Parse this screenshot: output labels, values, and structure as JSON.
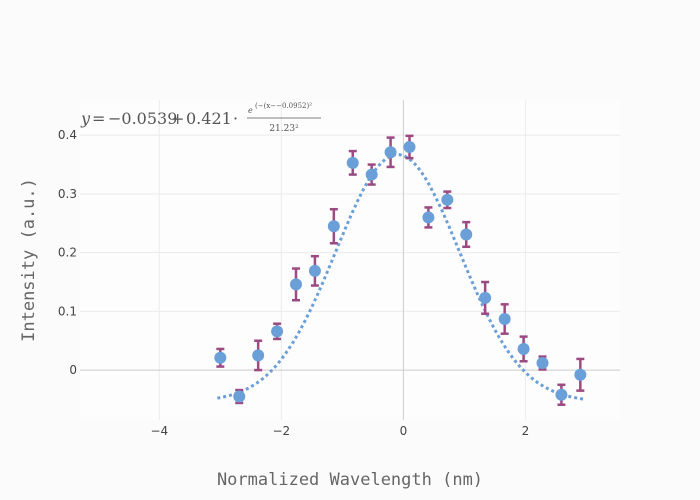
{
  "chart_data": {
    "type": "scatter",
    "xlabel": "Normalized Wavelength (nm)",
    "ylabel": "Intensity (a.u.)",
    "xlim": [
      -5.3,
      3.55
    ],
    "ylim": [
      -0.085,
      0.46
    ],
    "x_ticks": [
      -4,
      -2,
      0,
      2
    ],
    "x_tick_labels": [
      "−4",
      "−2",
      "0",
      "2"
    ],
    "y_ticks": [
      0,
      0.1,
      0.2,
      0.3,
      0.4
    ],
    "y_tick_labels": [
      "0",
      "0.1",
      "0.2",
      "0.3",
      "0.4"
    ],
    "grid": true,
    "legend": "none",
    "annotation": {
      "lhs": "y",
      "const": "−0.0539",
      "coef": "0.421",
      "exponent": "(−(x−−0.0952)²",
      "denominator": "21.23²"
    },
    "fit": {
      "offset": -0.0539,
      "amplitude": 0.421,
      "center": -0.0952,
      "width": 21.23
    },
    "points": {
      "x": [
        -3.0,
        -2.69,
        -2.38,
        -2.07,
        -1.76,
        -1.45,
        -1.14,
        -0.83,
        -0.52,
        -0.21,
        0.1,
        0.41,
        0.72,
        1.03,
        1.34,
        1.66,
        1.97,
        2.28,
        2.59,
        2.9
      ],
      "y": [
        0.021,
        -0.045,
        0.025,
        0.066,
        0.146,
        0.169,
        0.245,
        0.353,
        0.333,
        0.371,
        0.38,
        0.26,
        0.29,
        0.231,
        0.123,
        0.087,
        0.036,
        0.012,
        -0.042,
        -0.008
      ],
      "err": [
        0.015,
        0.011,
        0.025,
        0.013,
        0.027,
        0.025,
        0.029,
        0.02,
        0.017,
        0.025,
        0.019,
        0.017,
        0.014,
        0.021,
        0.027,
        0.025,
        0.021,
        0.011,
        0.017,
        0.027
      ]
    },
    "colors": {
      "marker": "#6a9fd8",
      "error_bar": "#9b4a82",
      "fit": "#6a9fd8",
      "grid": "#ececec",
      "zero": "#cccccc"
    }
  }
}
